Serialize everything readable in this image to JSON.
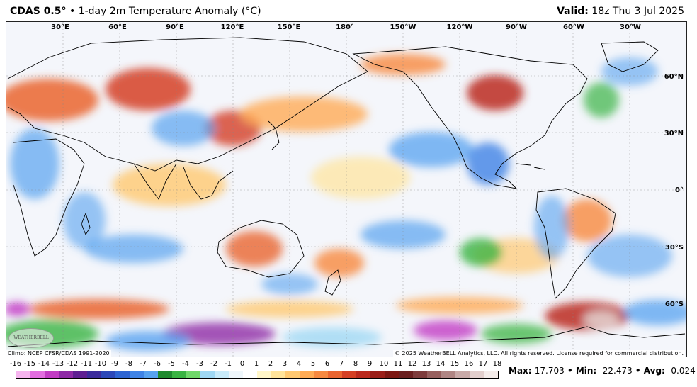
{
  "header": {
    "model": "CDAS 0.5°",
    "description": "• 1-day 2m Temperature Anomaly (°C)",
    "valid_label": "Valid:",
    "valid_time": "18z Thu 3 Jul 2025"
  },
  "map": {
    "longitude_labels": [
      "30°E",
      "60°E",
      "90°E",
      "120°E",
      "150°E",
      "180°",
      "150°W",
      "120°W",
      "90°W",
      "60°W",
      "30°W"
    ],
    "latitude_labels": [
      "60°N",
      "30°N",
      "0°",
      "30°S",
      "60°S"
    ],
    "climo_note": "Climo: NCEP CFSR/CDAS 1991-2020",
    "copyright": "© 2025 WeatherBELL Analytics, LLC. All rights reserved. License required for commercial distribution.",
    "logo_text": "WEATHERBELL"
  },
  "legend": {
    "ticks": [
      "-16",
      "-15",
      "-14",
      "-13",
      "-12",
      "-11",
      "-10",
      "-9",
      "-8",
      "-7",
      "-6",
      "-5",
      "-4",
      "-3",
      "-2",
      "-1",
      "0",
      "1",
      "2",
      "3",
      "4",
      "5",
      "6",
      "7",
      "8",
      "9",
      "10",
      "11",
      "12",
      "13",
      "14",
      "15",
      "16",
      "17",
      "18"
    ],
    "colors": [
      "#f6b4ef",
      "#e26de0",
      "#c23bc4",
      "#8e2aa6",
      "#5e1f92",
      "#3b2b9c",
      "#2c47b8",
      "#2e64d2",
      "#3f83e6",
      "#57a2f0",
      "#1f8a2e",
      "#39b442",
      "#6fd86a",
      "#9fd8f4",
      "#c8ebfa",
      "#eef6fb",
      "#ffffff",
      "#fff6c8",
      "#ffe49a",
      "#ffc971",
      "#ffab55",
      "#f78940",
      "#ea6530",
      "#d54024",
      "#bb2a1e",
      "#9a1e18",
      "#7c1712",
      "#6b2020",
      "#7e3c3c",
      "#97605e",
      "#b08684",
      "#c9aaa8",
      "#e2cfcd",
      "#f4ecea"
    ]
  },
  "stats": {
    "max_label": "Max:",
    "max_value": "17.703",
    "min_label": "Min:",
    "min_value": "-22.473",
    "avg_label": "Avg:",
    "avg_value": "-0.024",
    "separator": "•"
  }
}
